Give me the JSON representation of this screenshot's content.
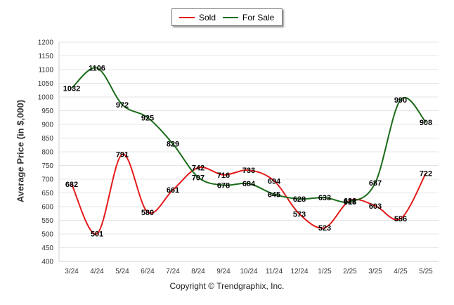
{
  "legend": {
    "sold_label": "Sold",
    "for_sale_label": "For Sale"
  },
  "copyright": "Copyright © Trendgraphix, Inc.",
  "chart_data": {
    "type": "line",
    "title": "",
    "xlabel": "",
    "ylabel": "Average Price (in $,000)",
    "ylim": [
      400,
      1200
    ],
    "yticks": [
      400,
      450,
      500,
      550,
      600,
      650,
      700,
      750,
      800,
      850,
      900,
      950,
      1000,
      1050,
      1100,
      1150,
      1200
    ],
    "grid": true,
    "legend_position": "top-center",
    "categories": [
      "3/24",
      "4/24",
      "5/24",
      "6/24",
      "7/24",
      "8/24",
      "9/24",
      "10/24",
      "11/24",
      "12/24",
      "1/25",
      "2/25",
      "3/25",
      "4/25",
      "5/25"
    ],
    "series": [
      {
        "name": "Sold",
        "color": "#e31a1c",
        "values": [
          682,
          501,
          791,
          580,
          661,
          742,
          716,
          733,
          694,
          573,
          523,
          622,
          603,
          556,
          722
        ]
      },
      {
        "name": "For Sale",
        "color": "#1a6b1a",
        "values": [
          1032,
          1106,
          972,
          925,
          829,
          707,
          678,
          684,
          645,
          628,
          633,
          618,
          687,
          990,
          908
        ]
      }
    ]
  }
}
